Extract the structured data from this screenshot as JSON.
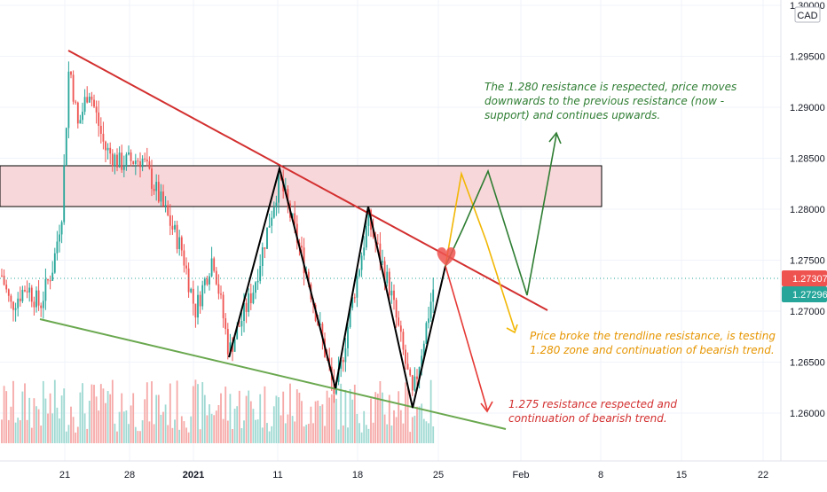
{
  "currency_badge": "CAD",
  "chart_data": {
    "type": "candlestick",
    "title": "",
    "xlabel": "",
    "ylabel": "",
    "ylim": [
      1.2575,
      1.3
    ],
    "grid": true,
    "x_tick_labels": [
      "21",
      "28",
      "2021",
      "11",
      "18",
      "25",
      "Feb",
      "8",
      "15",
      "22"
    ],
    "y_tick_labels": [
      "1.30000",
      "1.29500",
      "1.29000",
      "1.28500",
      "1.28000",
      "1.27500",
      "1.27000",
      "1.26500",
      "1.26000"
    ],
    "y_tick_values": [
      1.3,
      1.295,
      1.29,
      1.285,
      1.28,
      1.275,
      1.27,
      1.265,
      1.26
    ],
    "price_labels": [
      {
        "value": 1.27307,
        "text": "1.27307",
        "color": "#ef5350"
      },
      {
        "value": 1.27296,
        "text": "1.27296",
        "color": "#26a69a"
      }
    ],
    "resistance_zone": {
      "from": 1.2799,
      "to": 1.2839,
      "color": "#f8d7da"
    },
    "trendlines": [
      {
        "name": "descending-resistance",
        "color": "#d32f2f"
      },
      {
        "name": "ascending-support",
        "color": "#6aa84f"
      }
    ],
    "annotations": [
      {
        "text_lines": [
          "The 1.280 resistance is respected, price moves",
          "downwards to the previous resistance (now -",
          "support) and continues upwards."
        ],
        "color": "#2e7d32"
      },
      {
        "text_lines": [
          "Price broke the trendline resistance,  is testing",
          "1.280 zone and continuation of bearish trend."
        ],
        "color": "#e69500"
      },
      {
        "text_lines": [
          "1.275 resistance respected and",
          "continuation of bearish trend."
        ],
        "color": "#d32f2f"
      }
    ],
    "colors": {
      "up": "#26a69a",
      "down": "#ef5350",
      "volume_up": "#9fd9d2",
      "volume_down": "#f6a9a7",
      "zigzag": "#000000"
    }
  }
}
